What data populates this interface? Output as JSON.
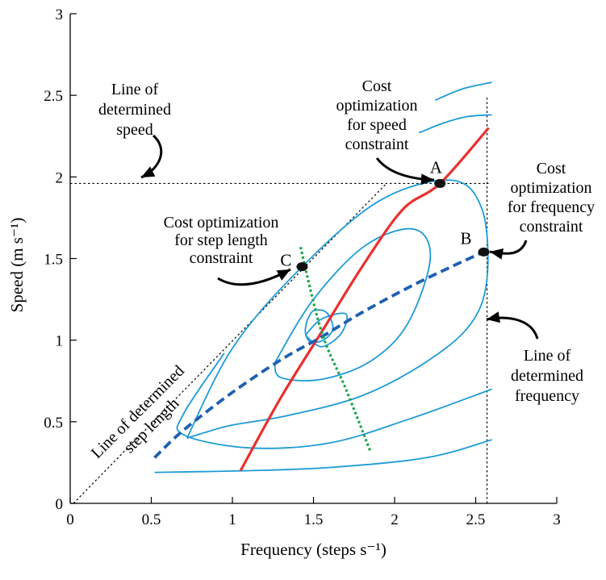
{
  "chart_data": {
    "type": "line",
    "title": "",
    "xlabel": "Frequency (steps s⁻¹)",
    "ylabel": "Speed (m s⁻¹)",
    "xlim": [
      0,
      3
    ],
    "ylim": [
      0,
      3
    ],
    "x_ticks": [
      "0",
      "0.5",
      "1",
      "1.5",
      "2",
      "2.5",
      "3"
    ],
    "y_ticks": [
      "0",
      "0.5",
      "1",
      "1.5",
      "2",
      "2.5",
      "3"
    ],
    "grid": false,
    "legend": "none",
    "colors": {
      "contour": "#1e9bd7",
      "speed_curve": "#e8312f",
      "frequency_curve": "#1f5fb0",
      "step_length_curve": "#1aa64a",
      "reference_lines": "#000000"
    },
    "series": [
      {
        "style": "solid-red",
        "points": [
          [
            1.05,
            0.2
          ],
          [
            1.3,
            0.65
          ],
          [
            1.55,
            1.05
          ],
          [
            1.8,
            1.45
          ],
          [
            2.05,
            1.8
          ],
          [
            2.28,
            1.96
          ],
          [
            2.58,
            2.3
          ]
        ]
      },
      {
        "style": "dashed-blue",
        "points": [
          [
            0.52,
            0.28
          ],
          [
            0.7,
            0.45
          ],
          [
            1.0,
            0.68
          ],
          [
            1.3,
            0.88
          ],
          [
            1.55,
            1.02
          ],
          [
            1.8,
            1.17
          ],
          [
            2.1,
            1.33
          ],
          [
            2.35,
            1.45
          ],
          [
            2.55,
            1.54
          ]
        ]
      },
      {
        "style": "dotted-green",
        "points": [
          [
            1.42,
            1.57
          ],
          [
            1.55,
            1.05
          ],
          [
            1.7,
            0.7
          ],
          [
            1.85,
            0.32
          ]
        ]
      }
    ],
    "reference_lines": [
      {
        "type": "horizontal",
        "y": 1.96,
        "x_range": [
          0,
          2.58
        ]
      },
      {
        "type": "vertical",
        "x": 2.57,
        "y_range": [
          0,
          2.5
        ]
      },
      {
        "type": "diagonal",
        "points": [
          [
            0.02,
            0
          ],
          [
            1.95,
            1.96
          ]
        ]
      }
    ],
    "contours": [
      [
        [
          1.46,
          1.12
        ],
        [
          1.5,
          1.18
        ],
        [
          1.58,
          1.17
        ],
        [
          1.62,
          1.07
        ],
        [
          1.56,
          1.0
        ],
        [
          1.48,
          0.99
        ],
        [
          1.45,
          1.05
        ],
        [
          1.46,
          1.12
        ]
      ],
      [
        [
          1.45,
          1.03
        ],
        [
          1.55,
          1.13
        ],
        [
          1.7,
          1.16
        ],
        [
          1.67,
          1.04
        ],
        [
          1.55,
          0.96
        ],
        [
          1.45,
          1.03
        ]
      ],
      [
        [
          1.26,
          0.86
        ],
        [
          1.5,
          1.25
        ],
        [
          1.82,
          1.58
        ],
        [
          2.12,
          1.68
        ],
        [
          2.22,
          1.5
        ],
        [
          2.08,
          1.1
        ],
        [
          1.85,
          0.87
        ],
        [
          1.55,
          0.76
        ],
        [
          1.3,
          0.77
        ],
        [
          1.26,
          0.86
        ]
      ],
      [
        [
          0.72,
          0.4
        ],
        [
          1.0,
          0.95
        ],
        [
          1.4,
          1.42
        ],
        [
          1.9,
          1.85
        ],
        [
          2.35,
          1.98
        ],
        [
          2.54,
          1.8
        ],
        [
          2.57,
          1.38
        ],
        [
          2.47,
          1.1
        ],
        [
          2.2,
          0.87
        ],
        [
          1.8,
          0.66
        ],
        [
          1.35,
          0.54
        ],
        [
          1.0,
          0.48
        ],
        [
          0.85,
          0.44
        ],
        [
          0.72,
          0.4
        ]
      ],
      [
        [
          0.95,
          0.92
        ],
        [
          0.7,
          0.55
        ],
        [
          0.7,
          0.42
        ],
        [
          1.1,
          0.34
        ],
        [
          1.6,
          0.37
        ],
        [
          2.1,
          0.52
        ],
        [
          2.6,
          0.7
        ]
      ],
      [
        [
          0.52,
          0.19
        ],
        [
          1.1,
          0.2
        ],
        [
          1.6,
          0.22
        ],
        [
          2.2,
          0.28
        ],
        [
          2.6,
          0.39
        ]
      ],
      [
        [
          2.15,
          2.27
        ],
        [
          2.3,
          2.33
        ],
        [
          2.45,
          2.37
        ],
        [
          2.6,
          2.38
        ]
      ],
      [
        [
          2.25,
          2.47
        ],
        [
          2.42,
          2.54
        ],
        [
          2.6,
          2.58
        ]
      ]
    ],
    "points": [
      {
        "label": "A",
        "x": 2.28,
        "y": 1.96
      },
      {
        "label": "B",
        "x": 2.55,
        "y": 1.54
      },
      {
        "label": "C",
        "x": 1.43,
        "y": 1.45
      }
    ],
    "annotations": [
      {
        "lines": [
          "Line of",
          "determined",
          "speed"
        ]
      },
      {
        "lines": [
          "Cost",
          "optimization",
          "for speed",
          "constraint"
        ]
      },
      {
        "lines": [
          "Cost",
          "optimization",
          "for frequency",
          "constraint"
        ]
      },
      {
        "lines": [
          "Cost optimization",
          "for step length",
          "constraint"
        ]
      },
      {
        "lines": [
          "Line of",
          "determined",
          "frequency"
        ]
      },
      {
        "lines": [
          "Line of determined",
          "step length"
        ]
      }
    ]
  }
}
